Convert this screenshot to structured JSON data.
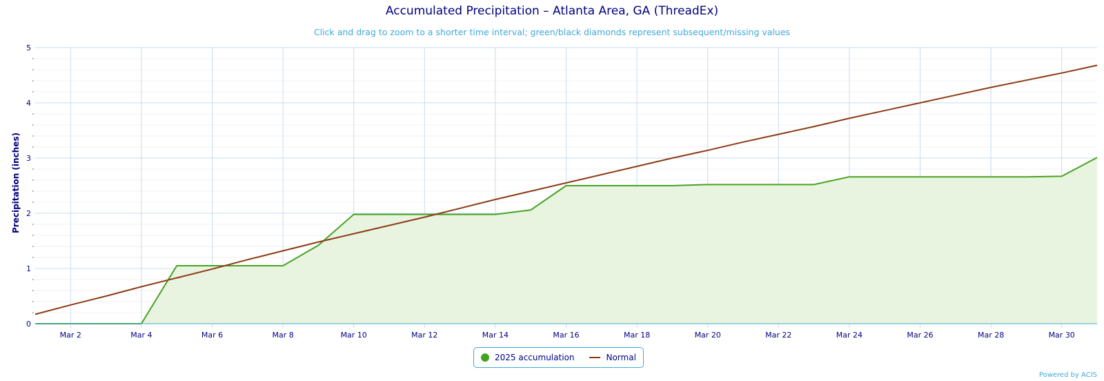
{
  "chart_data": {
    "type": "area",
    "title": "Accumulated Precipitation – Atlanta Area, GA (ThreadEx)",
    "subtitle": "Click and drag to zoom to a shorter time interval; green/black diamonds represent subsequent/missing values",
    "ylabel": "Precipitation (inches)",
    "xlabel": "",
    "ylim": [
      0,
      5
    ],
    "y_ticks": [
      0,
      1,
      2,
      3,
      4,
      5
    ],
    "x_tick_labels": [
      "Mar 2",
      "Mar 4",
      "Mar 6",
      "Mar 8",
      "Mar 10",
      "Mar 12",
      "Mar 14",
      "Mar 16",
      "Mar 18",
      "Mar 20",
      "Mar 22",
      "Mar 24",
      "Mar 26",
      "Mar 28",
      "Mar 30"
    ],
    "x": [
      1,
      2,
      3,
      4,
      5,
      6,
      7,
      8,
      9,
      10,
      11,
      12,
      13,
      14,
      15,
      16,
      17,
      18,
      19,
      20,
      21,
      22,
      23,
      24,
      25,
      26,
      27,
      28,
      29,
      30,
      31
    ],
    "x_label_format": "Mar {d}",
    "grid": true,
    "legend_position": "bottom-center",
    "series": [
      {
        "name": "2025 accumulation",
        "type": "area",
        "color": "#45a321",
        "fill": "#e8f3e0",
        "values": [
          0,
          0,
          0,
          0,
          1.05,
          1.05,
          1.05,
          1.05,
          1.42,
          1.98,
          1.98,
          1.98,
          1.98,
          1.98,
          2.06,
          2.5,
          2.5,
          2.5,
          2.5,
          2.52,
          2.52,
          2.52,
          2.52,
          2.66,
          2.66,
          2.66,
          2.66,
          2.66,
          2.66,
          2.67,
          3.01
        ]
      },
      {
        "name": "Normal",
        "type": "line",
        "color": "#8b3a14",
        "values": [
          0.17,
          0.34,
          0.5,
          0.67,
          0.83,
          0.99,
          1.16,
          1.32,
          1.48,
          1.63,
          1.78,
          1.93,
          2.09,
          2.25,
          2.4,
          2.55,
          2.7,
          2.85,
          3.0,
          3.14,
          3.29,
          3.43,
          3.57,
          3.72,
          3.86,
          4.0,
          4.14,
          4.28,
          4.41,
          4.54,
          4.68
        ]
      }
    ]
  },
  "colors": {
    "axis": "#000080",
    "grid_major": "#c7dcef",
    "grid_minor": "#f0f0f0",
    "axis_line": "#3fa9d8"
  },
  "credits": "Powered by ACIS"
}
